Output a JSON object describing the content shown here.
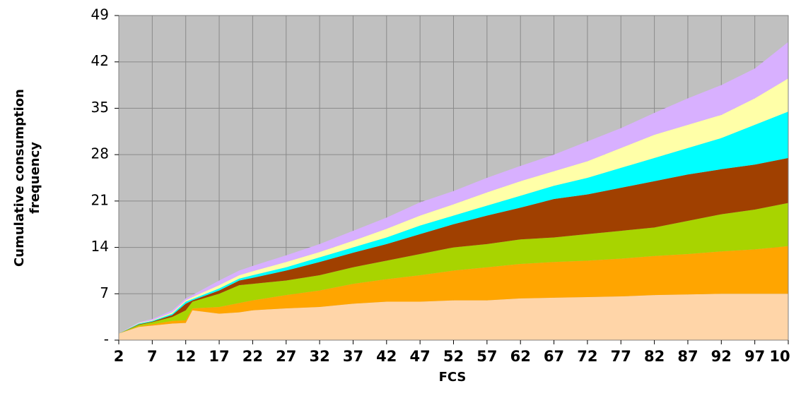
{
  "chart_data": {
    "type": "stacked-area",
    "xlabel": "FCS",
    "ylabel": [
      "Cumulative consumption",
      "frequency"
    ],
    "x": [
      2,
      5,
      7,
      10,
      12,
      13,
      17,
      20,
      22,
      27,
      32,
      37,
      42,
      47,
      52,
      57,
      62,
      67,
      72,
      77,
      82,
      87,
      92,
      97,
      102
    ],
    "xlim": [
      2,
      102
    ],
    "xticks": [
      2,
      7,
      12,
      17,
      22,
      27,
      32,
      37,
      42,
      47,
      52,
      57,
      62,
      67,
      72,
      77,
      82,
      87,
      92,
      97,
      {
        "value": 102,
        "label": "10"
      }
    ],
    "ylim": [
      0,
      49
    ],
    "yticks": [
      {
        "value": 0,
        "label": "-"
      },
      7,
      14,
      21,
      28,
      35,
      42,
      49
    ],
    "grid": true,
    "background": "#c0c0c0",
    "series": [
      {
        "color": "#ffd5a8",
        "values": [
          1,
          2,
          2.2,
          2.5,
          2.6,
          4.5,
          4,
          4.2,
          4.5,
          4.8,
          5,
          5.5,
          5.8,
          5.8,
          6,
          6,
          6.3,
          6.4,
          6.5,
          6.6,
          6.8,
          6.9,
          7,
          7,
          7
        ]
      },
      {
        "color": "#ffa500",
        "values": [
          0,
          0.1,
          0.2,
          0.4,
          0.4,
          0.3,
          1,
          1.4,
          1.5,
          2,
          2.5,
          3,
          3.4,
          4,
          4.5,
          5,
          5.2,
          5.4,
          5.5,
          5.7,
          5.9,
          6.1,
          6.4,
          6.7,
          7.2
        ]
      },
      {
        "color": "#a8d400",
        "values": [
          0,
          0.2,
          0.3,
          0.6,
          1.5,
          1,
          2,
          2.7,
          2.5,
          2.2,
          2.3,
          2.5,
          2.8,
          3.2,
          3.5,
          3.5,
          3.7,
          3.7,
          4,
          4.2,
          4.3,
          5,
          5.6,
          6,
          6.5
        ]
      },
      {
        "color": "#a04000",
        "values": [
          0,
          0.1,
          0.1,
          0.3,
          1,
          0.2,
          0.5,
          0.7,
          0.9,
          1.5,
          2,
          2.2,
          2.5,
          3,
          3.5,
          4.3,
          4.8,
          5.8,
          6,
          6.5,
          7,
          7,
          6.8,
          6.8,
          6.8
        ]
      },
      {
        "color": "#00ffff",
        "values": [
          0,
          0.1,
          0.1,
          0.2,
          0.3,
          0.2,
          0.3,
          0.3,
          0.4,
          0.5,
          0.7,
          0.8,
          1,
          1.3,
          1.3,
          1.5,
          1.8,
          2,
          2.5,
          3,
          3.5,
          4,
          4.7,
          6,
          7
        ]
      },
      {
        "color": "#ffffa8",
        "values": [
          0,
          0.1,
          0.1,
          0.2,
          0.2,
          0.3,
          0.5,
          0.5,
          0.6,
          0.8,
          0.8,
          1,
          1.3,
          1.5,
          1.7,
          2,
          2.2,
          2.2,
          2.5,
          3,
          3.5,
          3.5,
          3.5,
          4,
          5
        ]
      },
      {
        "color": "#d8b0ff",
        "values": [
          0,
          0.1,
          0.2,
          0.3,
          0.3,
          0.3,
          0.7,
          0.7,
          0.8,
          1,
          1.2,
          1.5,
          1.7,
          2,
          2,
          2.2,
          2.3,
          2.5,
          3,
          3,
          3.3,
          4,
          4.5,
          4.5,
          5.5
        ]
      }
    ]
  }
}
